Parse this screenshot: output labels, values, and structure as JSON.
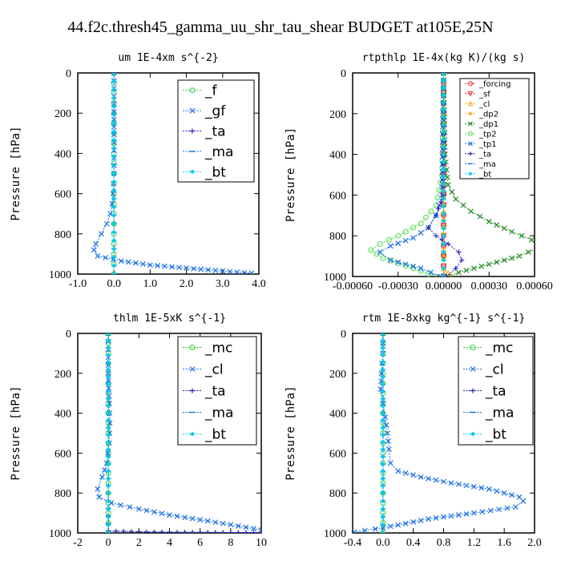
{
  "title": "44.f2c.thresh45_gamma_uu_shr_tau_shear  BUDGET at105E,25N",
  "colors": {
    "green": "#33cc33",
    "blue": "#1a6fe6",
    "navy": "#2222bb",
    "darkgreen": "#228b22",
    "red": "#dd2222",
    "orange": "#ffaa00",
    "cyan": "#00ccee"
  },
  "chart_data": [
    {
      "type": "line",
      "title": "um  1E-4xm s^{-2}",
      "ylabel": "Pressure [hPa]",
      "xlim": [
        -1,
        4
      ],
      "ylim": [
        1000,
        0
      ],
      "xticks": [
        -1,
        0,
        1,
        2,
        3,
        4
      ],
      "xtick_labels": [
        "-1.0",
        "0.0",
        "1.0",
        "2.0",
        "3.0",
        "4.0"
      ],
      "yticks": [
        0,
        200,
        400,
        600,
        800,
        1000
      ],
      "legend_position": "top-right",
      "series": [
        {
          "name": "_f",
          "color": "#33cc33",
          "marker": "circle",
          "x": [
            0,
            0,
            0,
            0,
            0,
            0,
            0,
            0,
            0,
            0,
            0,
            0,
            0,
            0,
            0,
            0,
            0,
            0,
            0,
            0,
            0
          ],
          "y": [
            0,
            50,
            100,
            150,
            200,
            250,
            300,
            350,
            400,
            450,
            500,
            550,
            600,
            650,
            700,
            750,
            800,
            850,
            900,
            950,
            1000
          ]
        },
        {
          "name": "_gf",
          "color": "#1a6fe6",
          "marker": "x",
          "x": [
            0,
            0,
            -0.02,
            -0.05,
            -0.1,
            -0.2,
            -0.35,
            -0.5,
            -0.55,
            -0.45,
            0.2,
            1.0,
            2.0,
            3.0,
            3.8
          ],
          "y": [
            0,
            500,
            600,
            650,
            700,
            750,
            800,
            850,
            880,
            910,
            935,
            955,
            970,
            985,
            995
          ]
        },
        {
          "name": "_ta",
          "color": "#2222bb",
          "marker": "plus",
          "x": [
            0,
            0,
            0,
            0,
            0
          ],
          "y": [
            0,
            250,
            500,
            750,
            1000
          ]
        },
        {
          "name": "_ma",
          "color": "#1a6fe6",
          "marker": "dash",
          "x": [
            0,
            0,
            0,
            0,
            0
          ],
          "y": [
            0,
            250,
            500,
            750,
            1000
          ]
        },
        {
          "name": "_bt",
          "color": "#00ccee",
          "marker": "diamond",
          "x": [
            0,
            0,
            0,
            0,
            0
          ],
          "y": [
            0,
            250,
            500,
            750,
            1000
          ]
        }
      ]
    },
    {
      "type": "line",
      "title": "rtpthlp  1E-4x(kg K)/(kg s)",
      "ylabel": "Pressure [hPa]",
      "xlim": [
        -0.0006,
        0.0006
      ],
      "ylim": [
        1000,
        0
      ],
      "xticks": [
        -0.0006,
        -0.0003,
        0.0,
        0.0003,
        0.0006
      ],
      "xtick_labels": [
        "-0.00060",
        "-0.00030",
        "0.00000",
        "0.00030",
        "0.00060"
      ],
      "yticks": [
        0,
        200,
        400,
        600,
        800,
        1000
      ],
      "legend_position": "top-right",
      "series": [
        {
          "name": "_forcing",
          "color": "#dd2222",
          "marker": "circle",
          "x": [
            0,
            0,
            0,
            0,
            0,
            0,
            0,
            0,
            0,
            0,
            0,
            0,
            0,
            0,
            0,
            0,
            0,
            0,
            0,
            0,
            0
          ],
          "y": [
            0,
            50,
            100,
            150,
            200,
            250,
            300,
            350,
            400,
            450,
            500,
            550,
            600,
            650,
            700,
            750,
            800,
            850,
            900,
            950,
            1000
          ]
        },
        {
          "name": "_sf",
          "color": "#dd2222",
          "marker": "triangle-down",
          "x": [
            0,
            0,
            0,
            0,
            0,
            0,
            0,
            0,
            0,
            0,
            0,
            0,
            0,
            0,
            0,
            0,
            0,
            0,
            0,
            0,
            0
          ],
          "y": [
            0,
            50,
            100,
            150,
            200,
            250,
            300,
            350,
            400,
            450,
            500,
            550,
            600,
            650,
            700,
            750,
            800,
            850,
            900,
            950,
            1000
          ]
        },
        {
          "name": "_cl",
          "color": "#ffaa00",
          "marker": "triangle",
          "x": [
            0,
            0,
            0,
            0,
            3e-05,
            5e-05
          ],
          "y": [
            0,
            500,
            900,
            960,
            985,
            1000
          ]
        },
        {
          "name": "_dp2",
          "color": "#ffaa00",
          "marker": "diamond",
          "x": [
            0,
            0,
            0,
            0
          ],
          "y": [
            0,
            400,
            800,
            1000
          ]
        },
        {
          "name": "_dp1",
          "color": "#228b22",
          "marker": "x",
          "x": [
            0,
            1e-05,
            3e-05,
            8e-05,
            0.00018,
            0.0003,
            0.00045,
            0.00058,
            0.00062,
            0.0005,
            0.0003,
            0.0001,
            3e-05
          ],
          "y": [
            0,
            400,
            550,
            620,
            680,
            730,
            780,
            820,
            860,
            900,
            940,
            980,
            1000
          ]
        },
        {
          "name": "_tp2",
          "color": "#55dd55",
          "marker": "circle",
          "x": [
            0,
            -1e-05,
            -5e-05,
            -0.00015,
            -0.0003,
            -0.00042,
            -0.00048,
            -0.0004,
            -0.0002,
            -5e-05
          ],
          "y": [
            0,
            500,
            650,
            740,
            800,
            840,
            870,
            910,
            960,
            1000
          ]
        },
        {
          "name": "_tp1",
          "color": "#1a6fe6",
          "marker": "x",
          "x": [
            0,
            -1e-05,
            -5e-05,
            -0.0001,
            -0.0002,
            -0.00035,
            -0.00042,
            -0.00035,
            -0.00015,
            -2e-05
          ],
          "y": [
            0,
            600,
            700,
            760,
            810,
            850,
            880,
            920,
            960,
            1000
          ]
        },
        {
          "name": "_ta",
          "color": "#2222bb",
          "marker": "plus",
          "x": [
            0,
            0,
            -5e-05,
            -0.0001,
            -5e-05,
            3e-05,
            0.0001,
            0.00012,
            8e-05,
            2e-05
          ],
          "y": [
            0,
            600,
            700,
            760,
            800,
            840,
            880,
            920,
            960,
            1000
          ]
        },
        {
          "name": "_ma",
          "color": "#1a6fe6",
          "marker": "dash",
          "x": [
            0,
            0,
            0,
            0
          ],
          "y": [
            0,
            400,
            800,
            1000
          ]
        },
        {
          "name": "_bt",
          "color": "#00ccee",
          "marker": "diamond",
          "x": [
            0,
            0,
            0,
            0
          ],
          "y": [
            0,
            400,
            800,
            1000
          ]
        }
      ]
    },
    {
      "type": "line",
      "title": "thlm  1E-5xK s^{-1}",
      "ylabel": "Pressure [hPa]",
      "xlim": [
        -2,
        10
      ],
      "ylim": [
        1000,
        0
      ],
      "xticks": [
        -2,
        0,
        2,
        4,
        6,
        8,
        10
      ],
      "xtick_labels": [
        "-2",
        "0",
        "2",
        "4",
        "6",
        "8",
        "10"
      ],
      "yticks": [
        0,
        200,
        400,
        600,
        800,
        1000
      ],
      "legend_position": "top-right",
      "series": [
        {
          "name": "_mc",
          "color": "#33cc33",
          "marker": "circle",
          "x": [
            0,
            0,
            0,
            0,
            0,
            0,
            0,
            0,
            0,
            0,
            0,
            0,
            0,
            0,
            0,
            0,
            0,
            0,
            0,
            0,
            0
          ],
          "y": [
            0,
            50,
            100,
            150,
            200,
            250,
            300,
            350,
            400,
            450,
            500,
            550,
            600,
            650,
            700,
            750,
            800,
            850,
            900,
            950,
            1000
          ]
        },
        {
          "name": "_cl",
          "color": "#1a6fe6",
          "marker": "x",
          "x": [
            0,
            0,
            0.05,
            0.1,
            0.05,
            -0.1,
            -0.4,
            -0.7,
            -0.6,
            0.2,
            2.0,
            4.0,
            6.5,
            8.5,
            10
          ],
          "y": [
            0,
            200,
            350,
            450,
            550,
            650,
            720,
            780,
            820,
            850,
            880,
            910,
            940,
            965,
            985
          ]
        },
        {
          "name": "_ta",
          "color": "#2222bb",
          "marker": "plus",
          "x": [
            0,
            0,
            0,
            0,
            2.5,
            5.5,
            8.5,
            10
          ],
          "y": [
            0,
            400,
            800,
            990,
            995,
            997,
            998,
            998
          ]
        },
        {
          "name": "_ma",
          "color": "#1a6fe6",
          "marker": "dash",
          "x": [
            0,
            0,
            0,
            0
          ],
          "y": [
            0,
            400,
            800,
            1000
          ]
        },
        {
          "name": "_bt",
          "color": "#00ccee",
          "marker": "diamond",
          "x": [
            0,
            0,
            0,
            0
          ],
          "y": [
            0,
            400,
            800,
            1000
          ]
        }
      ]
    },
    {
      "type": "line",
      "title": "rtm  1E-8xkg kg^{-1} s^{-1}",
      "ylabel": "Pressure [hPa]",
      "xlim": [
        -0.4,
        2.0
      ],
      "ylim": [
        1000,
        0
      ],
      "xticks": [
        -0.4,
        0.0,
        0.4,
        0.8,
        1.2,
        1.6,
        2.0
      ],
      "xtick_labels": [
        "-0.4",
        "0.0",
        "0.4",
        "0.8",
        "1.2",
        "1.6",
        "2.0"
      ],
      "yticks": [
        0,
        200,
        400,
        600,
        800,
        1000
      ],
      "legend_position": "top-right",
      "series": [
        {
          "name": "_mc",
          "color": "#33cc33",
          "marker": "circle",
          "x": [
            0,
            0,
            0,
            0,
            0,
            0,
            0,
            0,
            0,
            0,
            0,
            0,
            0,
            0,
            0,
            0,
            0,
            0,
            0,
            0,
            0
          ],
          "y": [
            0,
            50,
            100,
            150,
            200,
            250,
            300,
            350,
            400,
            450,
            500,
            550,
            600,
            650,
            700,
            750,
            800,
            850,
            900,
            950,
            1000
          ]
        },
        {
          "name": "_cl",
          "color": "#1a6fe6",
          "marker": "x",
          "x": [
            0,
            0,
            -0.02,
            -0.03,
            0.0,
            0.03,
            0.06,
            0.08,
            0.1,
            0.2,
            0.5,
            0.9,
            1.4,
            1.8,
            1.85,
            1.75,
            1.2,
            0.6,
            0.2,
            -0.1,
            -0.38
          ],
          "y": [
            0,
            100,
            200,
            280,
            350,
            420,
            500,
            580,
            650,
            690,
            720,
            750,
            780,
            820,
            840,
            870,
            900,
            930,
            960,
            980,
            995
          ]
        },
        {
          "name": "_ta",
          "color": "#2222bb",
          "marker": "plus",
          "x": [
            0,
            0,
            0,
            0
          ],
          "y": [
            0,
            400,
            800,
            1000
          ]
        },
        {
          "name": "_ma",
          "color": "#1a6fe6",
          "marker": "dash",
          "x": [
            0,
            0,
            0,
            0
          ],
          "y": [
            0,
            400,
            800,
            1000
          ]
        },
        {
          "name": "_bt",
          "color": "#00ccee",
          "marker": "diamond",
          "x": [
            0,
            0,
            0,
            0
          ],
          "y": [
            0,
            400,
            800,
            1000
          ]
        }
      ]
    }
  ]
}
